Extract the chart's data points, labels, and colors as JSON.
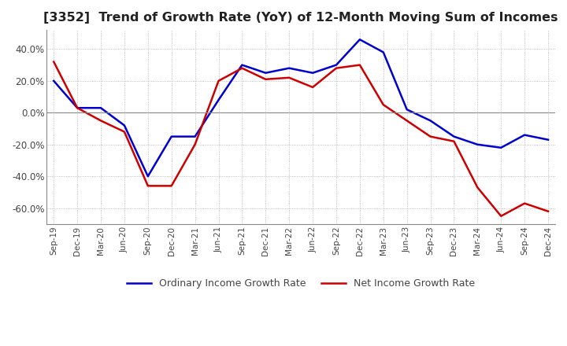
{
  "title": "[3352]  Trend of Growth Rate (YoY) of 12-Month Moving Sum of Incomes",
  "title_fontsize": 11.5,
  "ylim": [
    -70,
    52
  ],
  "yticks": [
    -60.0,
    -40.0,
    -20.0,
    0.0,
    20.0,
    40.0
  ],
  "background_color": "#ffffff",
  "grid_color": "#aaaaaa",
  "ordinary_color": "#0000cc",
  "net_color": "#cc0000",
  "x_labels": [
    "Sep-19",
    "Dec-19",
    "Mar-20",
    "Jun-20",
    "Sep-20",
    "Dec-20",
    "Mar-21",
    "Jun-21",
    "Sep-21",
    "Dec-21",
    "Mar-22",
    "Jun-22",
    "Sep-22",
    "Dec-22",
    "Mar-23",
    "Jun-23",
    "Sep-23",
    "Dec-23",
    "Mar-24",
    "Jun-24",
    "Sep-24",
    "Dec-24"
  ],
  "ordinary_income": [
    20.0,
    3.0,
    3.0,
    -8.0,
    -40.0,
    -15.0,
    -15.0,
    8.0,
    30.0,
    25.0,
    28.0,
    25.0,
    30.0,
    46.0,
    38.0,
    2.0,
    -5.0,
    -15.0,
    -20.0,
    -22.0,
    -14.0,
    -17.0
  ],
  "net_income": [
    32.0,
    3.0,
    -5.0,
    -12.0,
    -46.0,
    -46.0,
    -20.0,
    20.0,
    28.0,
    21.0,
    22.0,
    16.0,
    28.0,
    30.0,
    5.0,
    -5.0,
    -15.0,
    -18.0,
    -47.0,
    -65.0,
    -57.0,
    -62.0
  ],
  "legend_ordinary": "Ordinary Income Growth Rate",
  "legend_net": "Net Income Growth Rate"
}
